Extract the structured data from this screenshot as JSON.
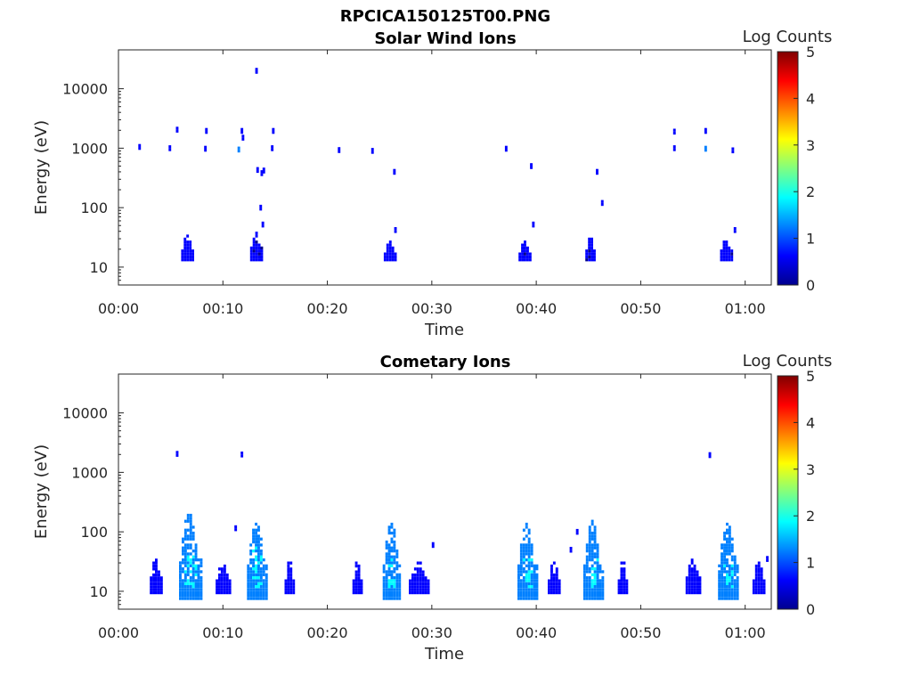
{
  "figure_title": "RPCICA150125T00.PNG",
  "colors": {
    "colormap": [
      "#00008f",
      "#0000ff",
      "#0080ff",
      "#00ffff",
      "#80ff80",
      "#ffff00",
      "#ff8000",
      "#ff0000",
      "#800000"
    ],
    "axis": "#262626"
  },
  "chart_data": [
    {
      "type": "heatmap",
      "title": "Solar Wind Ions",
      "xlabel": "Time",
      "ylabel": "Energy (eV)",
      "xlim_minutes": [
        0,
        62.5
      ],
      "ylim_eV": [
        5,
        45000
      ],
      "yscale": "log",
      "x_ticks": [
        "00:00",
        "00:10",
        "00:20",
        "00:30",
        "00:40",
        "00:50",
        "01:00"
      ],
      "y_ticks": [
        "10",
        "100",
        "1000",
        "10000"
      ],
      "colorbar": {
        "label": "Log Counts",
        "range": [
          0,
          5
        ],
        "ticks": [
          "0",
          "1",
          "2",
          "3",
          "4",
          "5"
        ]
      },
      "clusters": [
        {
          "t0": 6.0,
          "t1": 7.2,
          "e_min": 14,
          "e_max": 38,
          "level": 0.3
        },
        {
          "t0": 12.6,
          "t1": 13.6,
          "e_min": 14,
          "e_max": 42,
          "level": 0.3
        },
        {
          "t0": 25.4,
          "t1": 26.4,
          "e_min": 14,
          "e_max": 30,
          "level": 0.3
        },
        {
          "t0": 38.3,
          "t1": 39.3,
          "e_min": 14,
          "e_max": 30,
          "level": 0.3
        },
        {
          "t0": 44.7,
          "t1": 45.6,
          "e_min": 14,
          "e_max": 35,
          "level": 0.3
        },
        {
          "t0": 57.6,
          "t1": 58.6,
          "e_min": 14,
          "e_max": 32,
          "level": 0.3
        }
      ],
      "points": [
        {
          "t": 1.9,
          "e": 1050,
          "level": 0.4
        },
        {
          "t": 4.8,
          "e": 1000,
          "level": 0.4
        },
        {
          "t": 5.5,
          "e": 2050,
          "level": 0.4
        },
        {
          "t": 8.2,
          "e": 980,
          "level": 0.5
        },
        {
          "t": 8.3,
          "e": 1950,
          "level": 0.4
        },
        {
          "t": 11.4,
          "e": 950,
          "level": 1.3
        },
        {
          "t": 11.7,
          "e": 1950,
          "level": 0.4
        },
        {
          "t": 11.8,
          "e": 1500,
          "level": 0.4
        },
        {
          "t": 13.1,
          "e": 20000,
          "level": 0.4
        },
        {
          "t": 13.2,
          "e": 430,
          "level": 0.4
        },
        {
          "t": 13.6,
          "e": 380,
          "level": 0.4
        },
        {
          "t": 13.8,
          "e": 420,
          "level": 0.4
        },
        {
          "t": 13.5,
          "e": 100,
          "level": 0.4
        },
        {
          "t": 13.7,
          "e": 52,
          "level": 0.4
        },
        {
          "t": 14.6,
          "e": 1000,
          "level": 0.4
        },
        {
          "t": 14.7,
          "e": 1950,
          "level": 0.4
        },
        {
          "t": 21.0,
          "e": 930,
          "level": 0.4
        },
        {
          "t": 24.2,
          "e": 900,
          "level": 0.8
        },
        {
          "t": 26.3,
          "e": 400,
          "level": 0.4
        },
        {
          "t": 26.4,
          "e": 42,
          "level": 0.4
        },
        {
          "t": 37.0,
          "e": 980,
          "level": 0.8
        },
        {
          "t": 39.4,
          "e": 500,
          "level": 0.4
        },
        {
          "t": 39.6,
          "e": 52,
          "level": 0.4
        },
        {
          "t": 45.7,
          "e": 400,
          "level": 0.4
        },
        {
          "t": 46.2,
          "e": 120,
          "level": 0.4
        },
        {
          "t": 53.1,
          "e": 1900,
          "level": 0.4
        },
        {
          "t": 53.1,
          "e": 1000,
          "level": 0.6
        },
        {
          "t": 56.1,
          "e": 1950,
          "level": 0.4
        },
        {
          "t": 56.1,
          "e": 980,
          "level": 1.3
        },
        {
          "t": 58.7,
          "e": 920,
          "level": 0.4
        },
        {
          "t": 58.9,
          "e": 42,
          "level": 0.4
        }
      ]
    },
    {
      "type": "heatmap",
      "title": "Cometary Ions",
      "xlabel": "Time",
      "ylabel": "Energy (eV)",
      "xlim_minutes": [
        0,
        62.5
      ],
      "ylim_eV": [
        5,
        45000
      ],
      "yscale": "log",
      "x_ticks": [
        "00:00",
        "00:10",
        "00:20",
        "00:30",
        "00:40",
        "00:50",
        "01:00"
      ],
      "y_ticks": [
        "10",
        "100",
        "1000",
        "10000"
      ],
      "colorbar": {
        "label": "Log Counts",
        "range": [
          0,
          5
        ],
        "ticks": [
          "0",
          "1",
          "2",
          "3",
          "4",
          "5"
        ]
      },
      "clusters": [
        {
          "t0": 3.0,
          "t1": 4.0,
          "e_min": 10,
          "e_max": 40,
          "level": 0.4
        },
        {
          "t0": 5.8,
          "t1": 7.8,
          "e_min": 8,
          "e_max": 230,
          "level": 1.0,
          "core": [
            12,
            45
          ]
        },
        {
          "t0": 9.3,
          "t1": 10.6,
          "e_min": 10,
          "e_max": 35,
          "level": 0.5
        },
        {
          "t0": 12.3,
          "t1": 14.2,
          "e_min": 8,
          "e_max": 150,
          "level": 1.0,
          "core": [
            12,
            60
          ]
        },
        {
          "t0": 15.9,
          "t1": 16.8,
          "e_min": 10,
          "e_max": 35,
          "level": 0.5
        },
        {
          "t0": 22.4,
          "t1": 23.2,
          "e_min": 10,
          "e_max": 35,
          "level": 0.4
        },
        {
          "t0": 25.3,
          "t1": 27.0,
          "e_min": 8,
          "e_max": 160,
          "level": 1.0,
          "core": [
            12,
            40
          ]
        },
        {
          "t0": 27.8,
          "t1": 29.7,
          "e_min": 10,
          "e_max": 35,
          "level": 0.4
        },
        {
          "t0": 38.2,
          "t1": 40.0,
          "e_min": 8,
          "e_max": 150,
          "level": 1.0,
          "core": [
            12,
            40
          ]
        },
        {
          "t0": 41.1,
          "t1": 42.2,
          "e_min": 10,
          "e_max": 35,
          "level": 0.4
        },
        {
          "t0": 44.5,
          "t1": 46.3,
          "e_min": 8,
          "e_max": 160,
          "level": 1.0,
          "core": [
            12,
            40
          ]
        },
        {
          "t0": 47.8,
          "t1": 48.7,
          "e_min": 10,
          "e_max": 35,
          "level": 0.4
        },
        {
          "t0": 54.3,
          "t1": 55.6,
          "e_min": 10,
          "e_max": 40,
          "level": 0.5
        },
        {
          "t0": 57.4,
          "t1": 59.3,
          "e_min": 8,
          "e_max": 160,
          "level": 1.0,
          "core": [
            12,
            45
          ]
        },
        {
          "t0": 60.7,
          "t1": 61.8,
          "e_min": 10,
          "e_max": 35,
          "level": 0.5
        }
      ],
      "points": [
        {
          "t": 5.5,
          "e": 2050,
          "level": 0.4
        },
        {
          "t": 11.7,
          "e": 2000,
          "level": 0.4
        },
        {
          "t": 11.1,
          "e": 115,
          "level": 0.4
        },
        {
          "t": 56.5,
          "e": 1950,
          "level": 0.4
        },
        {
          "t": 30.0,
          "e": 60,
          "level": 0.4
        },
        {
          "t": 43.2,
          "e": 50,
          "level": 0.4
        },
        {
          "t": 43.8,
          "e": 100,
          "level": 0.4
        },
        {
          "t": 62.0,
          "e": 35,
          "level": 0.5
        }
      ]
    }
  ]
}
